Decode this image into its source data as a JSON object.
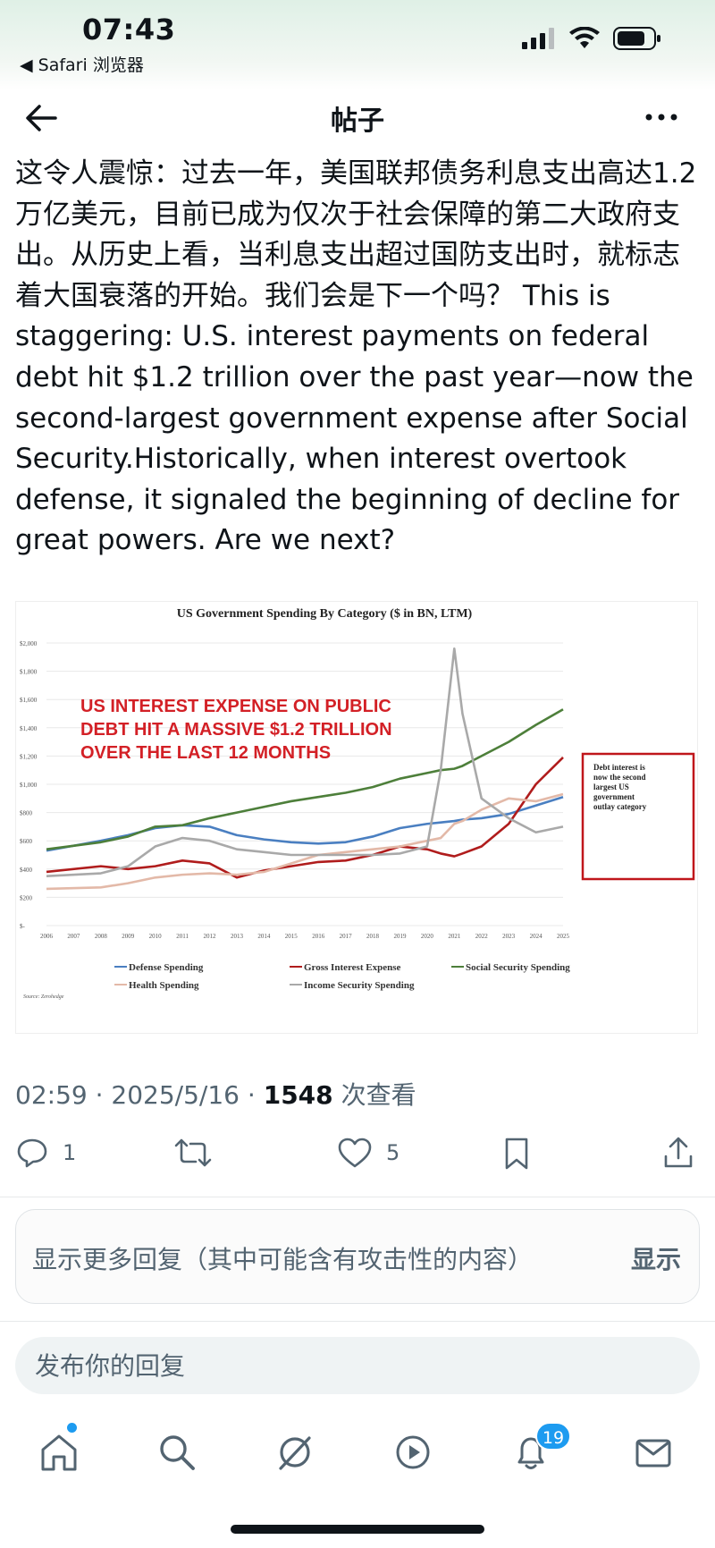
{
  "status_bar": {
    "time": "07:43",
    "back_app": "◀ Safari 浏览器",
    "icons": [
      "signal-icon",
      "wifi-icon",
      "battery-icon"
    ]
  },
  "nav": {
    "title": "帖子",
    "icons": [
      "back-arrow-icon",
      "more-icon"
    ]
  },
  "post": {
    "text": "这令人震惊：过去一年，美国联邦债务利息支出高达1.2万亿美元，目前已成为仅次于社会保障的第二大政府支出。从历史上看，当利息支出超过国防支出时，就标志着大国衰落的开始。我们会是下一个吗？ This is staggering: U.S. interest payments on federal debt hit $1.2 trillion over the past year—now the second-largest government expense after Social Security.Historically, when interest overtook defense, it signaled the beginning of decline for great powers. Are we next?"
  },
  "chart_data": {
    "type": "line",
    "title": "US Government Spending By Category ($ in BN, LTM)",
    "annotation_red": [
      "US INTEREST EXPENSE ON PUBLIC",
      "DEBT HIT A MASSIVE $1.2 TRILLION",
      "OVER THE LAST 12 MONTHS"
    ],
    "annotation_box": [
      "Debt interest is",
      "now the second",
      "largest US",
      "government",
      "outlay category"
    ],
    "source": "Source: Zerohedge",
    "ylim": [
      0,
      2000
    ],
    "y_ticks": [
      "$-",
      "$200",
      "$400",
      "$600",
      "$800",
      "$1,000",
      "$1,200",
      "$1,400",
      "$1,600",
      "$1,800",
      "$2,000"
    ],
    "x_ticks": [
      "2006",
      "2007",
      "2008",
      "2009",
      "2010",
      "2011",
      "2012",
      "2013",
      "2014",
      "2015",
      "2016",
      "2017",
      "2018",
      "2019",
      "2020",
      "2021",
      "2022",
      "2023",
      "2024",
      "2025"
    ],
    "x": [
      2006,
      2008,
      2009,
      2010,
      2011,
      2012,
      2013,
      2014,
      2015,
      2016,
      2017,
      2018,
      2019,
      2020,
      2020.5,
      2021,
      2021.3,
      2022,
      2023,
      2024,
      2025
    ],
    "series": [
      {
        "name": "Defense Spending",
        "color": "#4a7fc1",
        "values": [
          530,
          600,
          640,
          690,
          710,
          700,
          640,
          610,
          590,
          580,
          590,
          630,
          690,
          720,
          730,
          740,
          750,
          760,
          790,
          850,
          910
        ]
      },
      {
        "name": "Gross Interest Expense",
        "color": "#b01c1c",
        "values": [
          380,
          420,
          400,
          420,
          460,
          440,
          340,
          390,
          420,
          450,
          460,
          500,
          560,
          540,
          510,
          490,
          510,
          560,
          720,
          1000,
          1190
        ]
      },
      {
        "name": "Social Security Spending",
        "color": "#4d7f3a",
        "values": [
          540,
          590,
          630,
          700,
          710,
          760,
          800,
          840,
          880,
          910,
          940,
          980,
          1040,
          1080,
          1100,
          1110,
          1130,
          1200,
          1300,
          1420,
          1530
        ]
      },
      {
        "name": "Health Spending",
        "color": "#e3b9a8",
        "values": [
          260,
          270,
          300,
          340,
          360,
          370,
          360,
          380,
          440,
          500,
          520,
          540,
          560,
          600,
          620,
          720,
          740,
          820,
          900,
          880,
          930
        ]
      },
      {
        "name": "Income Security Spending",
        "color": "#a9a9a9",
        "values": [
          350,
          370,
          420,
          560,
          620,
          600,
          540,
          520,
          500,
          500,
          500,
          500,
          510,
          560,
          1100,
          1960,
          1500,
          900,
          760,
          660,
          700
        ]
      }
    ]
  },
  "meta": {
    "time": "02:59",
    "sep1": "·",
    "date": "2025/5/16",
    "sep2": "·",
    "views": "1548",
    "views_label": "次查看"
  },
  "actions": {
    "reply_count": "1",
    "like_count": "5"
  },
  "more_replies": {
    "label": "显示更多回复（其中可能含有攻击性的内容）",
    "show": "显示"
  },
  "reply_box": {
    "placeholder": "发布你的回复"
  },
  "tab_bar": {
    "notifications_badge": "19",
    "accent": "#1d9bf0"
  }
}
